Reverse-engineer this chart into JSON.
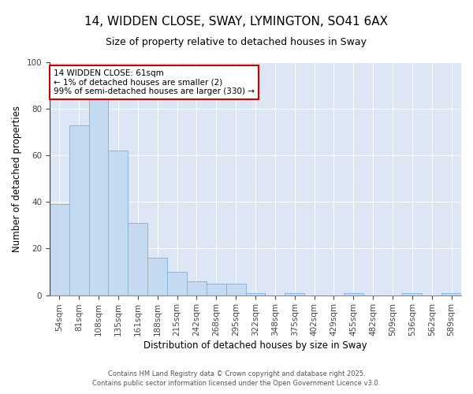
{
  "title1": "14, WIDDEN CLOSE, SWAY, LYMINGTON, SO41 6AX",
  "title2": "Size of property relative to detached houses in Sway",
  "xlabel": "Distribution of detached houses by size in Sway",
  "ylabel": "Number of detached properties",
  "categories": [
    "54sqm",
    "81sqm",
    "108sqm",
    "135sqm",
    "161sqm",
    "188sqm",
    "215sqm",
    "242sqm",
    "268sqm",
    "295sqm",
    "322sqm",
    "348sqm",
    "375sqm",
    "402sqm",
    "429sqm",
    "455sqm",
    "482sqm",
    "509sqm",
    "536sqm",
    "562sqm",
    "589sqm"
  ],
  "values": [
    39,
    73,
    84,
    62,
    31,
    16,
    10,
    6,
    5,
    5,
    1,
    0,
    1,
    0,
    0,
    1,
    0,
    0,
    1,
    0,
    1
  ],
  "bar_color": "#c5d9f0",
  "bar_edge_color": "#8ab4d9",
  "annotation_line1": "14 WIDDEN CLOSE: 61sqm",
  "annotation_line2": "← 1% of detached houses are smaller (2)",
  "annotation_line3": "99% of semi-detached houses are larger (330) →",
  "annotation_box_color": "#ffffff",
  "annotation_box_edge": "#cc0000",
  "marker_line_color": "#cc0000",
  "bg_color": "#ffffff",
  "plot_bg_color": "#dce6f4",
  "footer1": "Contains HM Land Registry data © Crown copyright and database right 2025.",
  "footer2": "Contains public sector information licensed under the Open Government Licence v3.0.",
  "ylim": [
    0,
    100
  ],
  "title_fontsize": 11,
  "subtitle_fontsize": 9,
  "axis_label_fontsize": 8.5,
  "tick_fontsize": 7.5,
  "annotation_fontsize": 7.5,
  "footer_fontsize": 6
}
